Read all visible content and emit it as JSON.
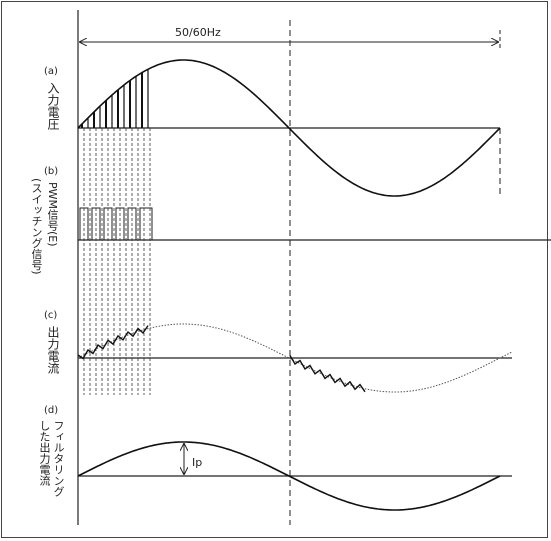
{
  "frequency_label": "50/60Hz",
  "panels": [
    {
      "tag": "(a)",
      "label": "入力電圧"
    },
    {
      "tag": "(b)",
      "label_lines": [
        "PWM信号(E)",
        "(スイッチング信号)"
      ]
    },
    {
      "tag": "(c)",
      "label": "出力電流"
    },
    {
      "tag": "(d)",
      "label_lines": [
        "フィルタリング",
        "した出力電流"
      ]
    }
  ],
  "peak_label": "Ip"
}
